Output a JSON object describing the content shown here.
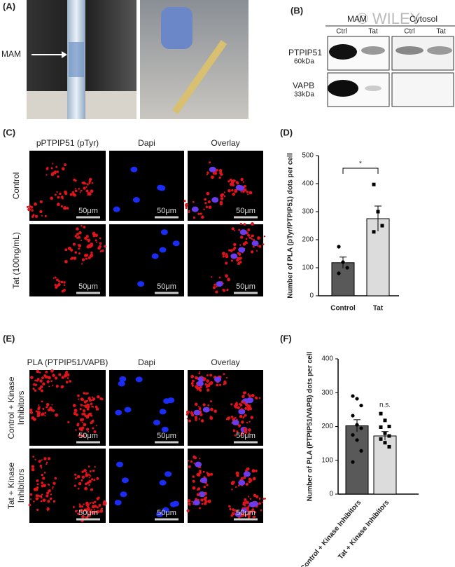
{
  "panels": {
    "a": {
      "label": "(A)",
      "annotation": "MAM"
    },
    "b": {
      "label": "(B)",
      "watermark": "© WILEY",
      "groups": [
        "MAM",
        "Cytosol"
      ],
      "lanes": [
        "Ctrl",
        "Tat",
        "Ctrl",
        "Tat"
      ],
      "rows": [
        {
          "protein": "PTPIP51",
          "size": "60kDa"
        },
        {
          "protein": "VAPB",
          "size": "33kDa"
        }
      ]
    },
    "c": {
      "label": "(C)",
      "columns": [
        "pPTPIP51 (pTyr)",
        "Dapi",
        "Overlay"
      ],
      "rows": [
        "Control",
        "Tat (100ng/mL)"
      ],
      "scale_bar": "50μm"
    },
    "e": {
      "label": "(E)",
      "columns": [
        "PLA (PTPIP51/VAPB)",
        "Dapi",
        "Overlay"
      ],
      "rows": [
        [
          "Control + Kinase",
          "Inhibitors"
        ],
        [
          "Tat + Kinase",
          "Inhibitors"
        ]
      ],
      "scale_bar": "50μm"
    }
  },
  "chart_data": [
    {
      "type": "bar",
      "label": "(D)",
      "ylabel": "Number of PLA (pTyr/PTPIP51) dots per cell",
      "categories": [
        "Control",
        "Tat"
      ],
      "values": [
        118,
        275
      ],
      "errors": [
        20,
        45
      ],
      "points": [
        [
          175,
          120,
          100,
          80
        ],
        [
          397,
          300,
          250,
          228
        ]
      ],
      "colors": [
        "#595959",
        "#dcdcdc"
      ],
      "annotation": "*",
      "ylim": [
        0,
        500
      ],
      "yticks": [
        0,
        100,
        200,
        300,
        400,
        500
      ]
    },
    {
      "type": "bar",
      "label": "(F)",
      "ylabel": "Number of PLA (PTPIP51/VAPB) dots per cell",
      "categories": [
        "Control + Kinase Inhibitors",
        "Tat + Kinase Inhibitors"
      ],
      "values": [
        202,
        172
      ],
      "errors": [
        18,
        13
      ],
      "points": [
        [
          290,
          282,
          262,
          232,
          205,
          195,
          175,
          160,
          128,
          95
        ],
        [
          238,
          218,
          200,
          198,
          180,
          172,
          163,
          152,
          140
        ]
      ],
      "colors": [
        "#595959",
        "#dcdcdc"
      ],
      "annotation": "n.s.",
      "ylim": [
        0,
        400
      ],
      "yticks": [
        0,
        100,
        200,
        300,
        400
      ]
    }
  ]
}
